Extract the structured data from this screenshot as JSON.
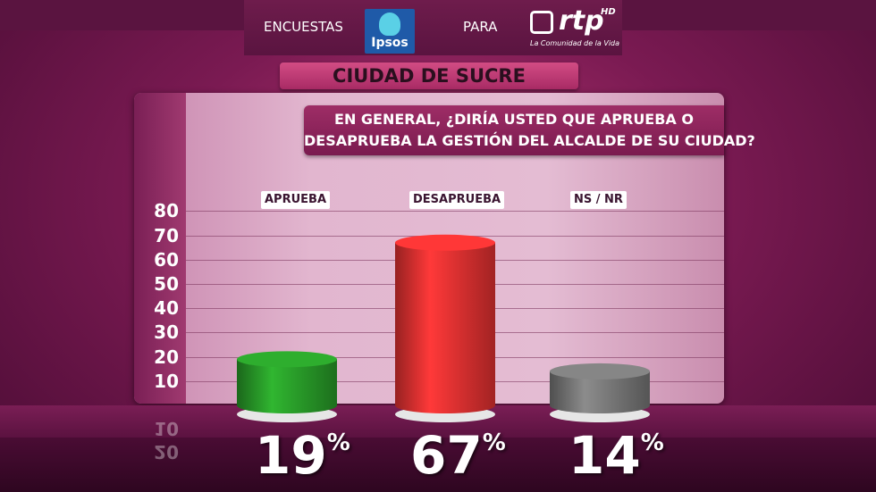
{
  "header": {
    "left_text": "ENCUESTAS",
    "middle_text": "PARA",
    "ipsos_logo": "Ipsos",
    "rtp_logo": "rtp",
    "rtp_hd": "HD",
    "rtp_tagline": "La Comunidad de la Vida"
  },
  "city_title": "CIUDAD DE SUCRE",
  "question": {
    "line1": "EN GENERAL, ¿DIRÍA USTED QUE APRUEBA O",
    "line2": "DESAPRUEBA LA GESTIÓN DEL ALCALDE DE SU CIUDAD?"
  },
  "chart_data": {
    "type": "bar",
    "categories": [
      "APRUEBA",
      "DESAPRUEBA",
      "NS / NR"
    ],
    "values": [
      19,
      67,
      14
    ],
    "value_labels": [
      "19",
      "67",
      "14"
    ],
    "value_suffix": "%",
    "ylim": [
      0,
      80
    ],
    "yticks": [
      "80",
      "70",
      "60",
      "50",
      "40",
      "30",
      "20",
      "10"
    ],
    "reflected_ticks": [
      "10",
      "20"
    ],
    "grid": true,
    "colors": [
      "#2a9e2a",
      "#e83232",
      "#7a7a7a"
    ]
  }
}
